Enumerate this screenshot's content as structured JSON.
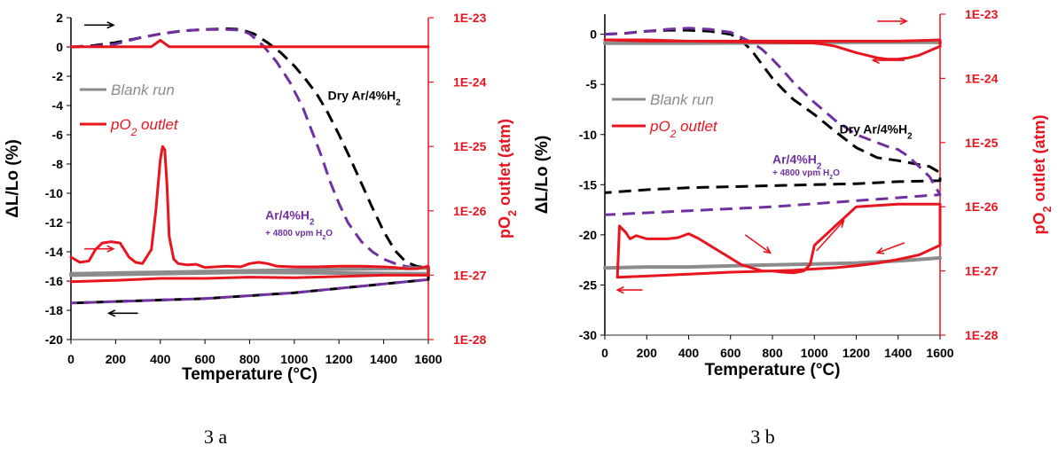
{
  "captions": [
    "3 a",
    "3 b"
  ],
  "colors": {
    "dry": "#000000",
    "wet": "#7030a0",
    "po2": "#e8141e",
    "blank": "#8c8c8c",
    "axis_left": "#000000",
    "axis_right": "#e8141e"
  },
  "chart_data": [
    {
      "type": "line",
      "xlabel": "Temperature (°C)",
      "ylabel": "ΔL/Lo (%)",
      "y2label": "pO2 outlet (atm)",
      "xlim": [
        0,
        1600
      ],
      "ylim": [
        -20,
        2
      ],
      "y2scale": "log",
      "y2lim_exp": [
        -28,
        -23
      ],
      "xticks": [
        "0",
        "200",
        "400",
        "600",
        "800",
        "1000",
        "1200",
        "1400",
        "1600"
      ],
      "xtick_values": [
        0,
        200,
        400,
        600,
        800,
        1000,
        1200,
        1400,
        1600
      ],
      "yticks": [
        "2",
        "0",
        "-2",
        "-4",
        "-6",
        "-8",
        "-10",
        "-12",
        "-14",
        "-16",
        "-18",
        "-20"
      ],
      "ytick_values": [
        2,
        0,
        -2,
        -4,
        -6,
        -8,
        -10,
        -12,
        -14,
        -16,
        -18,
        -20
      ],
      "y2ticks": [
        "1E-23",
        "1E-24",
        "1E-25",
        "1E-26",
        "1E-27",
        "1E-28"
      ],
      "y2tick_exp": [
        -23,
        -24,
        -25,
        -26,
        -27,
        -28
      ],
      "legend": [
        {
          "label": "Blank run",
          "series": "blank"
        },
        {
          "label": "pO2 outlet",
          "series": "po2"
        }
      ],
      "annotations": [
        {
          "text": "Dry Ar/4%H2",
          "x": 1150,
          "y": -3.6,
          "color": "dry",
          "size": "large"
        },
        {
          "text": "Ar/4%H2",
          "x": 870,
          "y": -11.8,
          "color": "wet",
          "size": "large"
        },
        {
          "text": "+ 4800 vpm H2O",
          "x": 870,
          "y": -12.9,
          "color": "wet",
          "size": "small"
        }
      ],
      "arrows": [
        {
          "x1": 60,
          "x2": 190,
          "y": 1.5,
          "color": "dry"
        },
        {
          "x1": 60,
          "x2": 190,
          "y": -13.8,
          "color": "po2"
        },
        {
          "x1": 300,
          "x2": 170,
          "y": -18.2,
          "color": "dry"
        }
      ],
      "series": [
        {
          "key": "dry",
          "axis": "left",
          "dash": true,
          "x": [
            0,
            100,
            200,
            300,
            400,
            500,
            600,
            700,
            760,
            820,
            880,
            940,
            1000,
            1050,
            1100,
            1150,
            1200,
            1250,
            1300,
            1350,
            1400,
            1450,
            1500,
            1550,
            1600,
            1600,
            1400,
            1200,
            1000,
            800,
            600,
            400,
            200,
            0
          ],
          "y": [
            0,
            0.1,
            0.3,
            0.6,
            0.9,
            1.1,
            1.2,
            1.25,
            1.2,
            0.9,
            0.3,
            -0.4,
            -1.3,
            -2.2,
            -3.2,
            -4.5,
            -6,
            -7.6,
            -9.3,
            -11,
            -12.6,
            -13.9,
            -14.7,
            -15,
            -15.1,
            -15.9,
            -16.2,
            -16.5,
            -16.8,
            -17,
            -17.2,
            -17.3,
            -17.4,
            -17.5
          ]
        },
        {
          "key": "wet",
          "axis": "left",
          "dash": true,
          "x": [
            0,
            100,
            200,
            300,
            400,
            500,
            600,
            700,
            760,
            800,
            860,
            920,
            980,
            1040,
            1080,
            1120,
            1160,
            1200,
            1240,
            1300,
            1350,
            1400,
            1450,
            1500,
            1550,
            1600,
            1600,
            1400,
            1200,
            1000,
            800,
            600,
            400,
            200,
            0
          ],
          "y": [
            0,
            0.05,
            0.2,
            0.6,
            0.9,
            1.1,
            1.2,
            1.2,
            1.15,
            0.9,
            0.1,
            -1,
            -2.4,
            -4.2,
            -5.8,
            -7.4,
            -9.2,
            -10.7,
            -12,
            -13.3,
            -14,
            -14.5,
            -14.8,
            -15,
            -15.1,
            -15.1,
            -15.9,
            -16.2,
            -16.5,
            -16.8,
            -17,
            -17.2,
            -17.3,
            -17.4,
            -17.5
          ]
        },
        {
          "key": "blank",
          "axis": "left",
          "dash": false,
          "x": [
            0,
            200,
            400,
            600,
            800,
            1000,
            1200,
            1400,
            1600,
            1600,
            800,
            0
          ],
          "y": [
            -15.5,
            -15.45,
            -15.4,
            -15.35,
            -15.3,
            -15.25,
            -15.2,
            -15.15,
            -15.1,
            -15.5,
            -15.4,
            -15.6
          ]
        },
        {
          "key": "po2",
          "axis": "right",
          "dash": false,
          "x": [
            0,
            200,
            360,
            400,
            440,
            600,
            800,
            1000,
            1200,
            1400,
            1600
          ],
          "y": [
            -23.45,
            -23.45,
            -23.45,
            -23.35,
            -23.45,
            -23.45,
            -23.45,
            -23.45,
            -23.45,
            -23.45,
            -23.45
          ]
        },
        {
          "key": "po2",
          "axis": "right",
          "dash": false,
          "x": [
            0,
            40,
            80,
            110,
            140,
            180,
            220,
            260,
            290,
            320,
            360,
            380,
            400,
            410,
            420,
            430,
            440,
            460,
            480,
            520,
            560,
            600,
            700,
            760,
            800,
            840,
            880,
            920,
            1000,
            1100,
            1200,
            1300,
            1400,
            1450,
            1500,
            1550,
            1600,
            1600,
            1400,
            1200,
            1000,
            800,
            600,
            400,
            200,
            0
          ],
          "y": [
            -26.72,
            -26.8,
            -26.78,
            -26.6,
            -26.5,
            -26.48,
            -26.5,
            -26.72,
            -26.8,
            -26.82,
            -26.6,
            -26.0,
            -25.2,
            -25.0,
            -25.05,
            -25.6,
            -26.4,
            -26.75,
            -26.82,
            -26.84,
            -26.83,
            -26.88,
            -26.86,
            -26.87,
            -26.82,
            -26.8,
            -26.82,
            -26.86,
            -26.87,
            -26.87,
            -26.86,
            -26.86,
            -26.87,
            -26.88,
            -26.9,
            -26.9,
            -26.86,
            -27.0,
            -27.0,
            -27.02,
            -27.04,
            -27.03,
            -27.05,
            -27.05,
            -27.08,
            -27.1
          ]
        }
      ]
    },
    {
      "type": "line",
      "xlabel": "Temperature (°C)",
      "ylabel": "ΔL/Lo (%)",
      "y2label": "pO2 outlet (atm)",
      "xlim": [
        0,
        1600
      ],
      "ylim": [
        -30,
        2
      ],
      "y2scale": "log",
      "y2lim_exp": [
        -28,
        -23
      ],
      "xticks": [
        "0",
        "200",
        "400",
        "600",
        "800",
        "1000",
        "1200",
        "1400",
        "1600"
      ],
      "xtick_values": [
        0,
        200,
        400,
        600,
        800,
        1000,
        1200,
        1400,
        1600
      ],
      "yticks": [
        "0",
        "-5",
        "-10",
        "-15",
        "-20",
        "-25",
        "-30"
      ],
      "ytick_values": [
        0,
        -5,
        -10,
        -15,
        -20,
        -25,
        -30
      ],
      "y2ticks": [
        "1E-23",
        "1E-24",
        "1E-25",
        "1E-26",
        "1E-27",
        "1E-28"
      ],
      "y2tick_exp": [
        -23,
        -24,
        -25,
        -26,
        -27,
        -28
      ],
      "legend": [
        {
          "label": "Blank run",
          "series": "blank"
        },
        {
          "label": "pO2 outlet",
          "series": "po2"
        }
      ],
      "annotations": [
        {
          "text": "Dry Ar/4%H2",
          "x": 1120,
          "y": -9.9,
          "color": "dry",
          "size": "large"
        },
        {
          "text": "Ar/4%H2",
          "x": 800,
          "y": -12.9,
          "color": "wet",
          "size": "large"
        },
        {
          "text": "+ 4800 vpm H2O",
          "x": 800,
          "y": -14.1,
          "color": "wet",
          "size": "small"
        }
      ],
      "arrows": [
        {
          "x1": 1300,
          "x2": 1440,
          "y": 1.3,
          "color": "po2"
        },
        {
          "x1": 1430,
          "x2": 1280,
          "y": -2.6,
          "color": "po2"
        },
        {
          "x1": 670,
          "x2": 790,
          "y": -20.0,
          "color": "po2",
          "y2": -21.8
        },
        {
          "x1": 1010,
          "x2": 1140,
          "y": -21.6,
          "color": "po2",
          "y2": -18.6
        },
        {
          "x1": 1430,
          "x2": 1300,
          "y": -20.8,
          "color": "po2",
          "y2": -21.8
        },
        {
          "x1": 180,
          "x2": 60,
          "y": -25.5,
          "color": "po2"
        }
      ],
      "series": [
        {
          "key": "dry",
          "axis": "left",
          "dash": true,
          "x": [
            0,
            100,
            200,
            300,
            400,
            500,
            600,
            650,
            700,
            750,
            800,
            850,
            900,
            1000,
            1100,
            1200,
            1300,
            1400,
            1450,
            1500,
            1550,
            1600,
            1600,
            1400,
            1200,
            1000,
            800,
            600,
            400,
            200,
            0
          ],
          "y": [
            0,
            0.1,
            0.3,
            0.4,
            0.4,
            0.3,
            0,
            -0.6,
            -1.6,
            -3,
            -4.4,
            -5.5,
            -6.5,
            -8,
            -9.7,
            -11.3,
            -12.3,
            -12.6,
            -12.8,
            -13,
            -13.2,
            -13.8,
            -14.6,
            -14.7,
            -14.9,
            -15,
            -15.1,
            -15.2,
            -15.3,
            -15.5,
            -15.8
          ]
        },
        {
          "key": "wet",
          "axis": "left",
          "dash": true,
          "x": [
            0,
            100,
            200,
            300,
            400,
            500,
            600,
            650,
            700,
            750,
            800,
            850,
            900,
            1000,
            1100,
            1200,
            1300,
            1350,
            1400,
            1450,
            1500,
            1550,
            1600,
            1600,
            1400,
            1200,
            1000,
            800,
            600,
            400,
            200,
            0
          ],
          "y": [
            0,
            0.1,
            0.3,
            0.5,
            0.6,
            0.5,
            0.2,
            -0.3,
            -0.8,
            -1.5,
            -2.5,
            -3.6,
            -4.8,
            -6.8,
            -8.6,
            -10,
            -10.8,
            -11.2,
            -11.5,
            -12.2,
            -13.2,
            -14.2,
            -16,
            -16,
            -16.3,
            -16.6,
            -16.9,
            -17.2,
            -17.4,
            -17.6,
            -17.8,
            -18
          ]
        },
        {
          "key": "blank",
          "axis": "left",
          "dash": false,
          "x": [
            0,
            200,
            400,
            600,
            800,
            1000,
            1200,
            1400,
            1600
          ],
          "y": [
            -23.3,
            -23.2,
            -23.2,
            -23.1,
            -23.0,
            -22.9,
            -22.8,
            -22.6,
            -22.3
          ]
        },
        {
          "key": "blank",
          "axis": "left",
          "dash": false,
          "x": [
            0,
            400,
            800,
            1200,
            1600
          ],
          "y": [
            -0.9,
            -0.9,
            -0.85,
            -0.8,
            -0.8
          ]
        },
        {
          "key": "po2",
          "axis": "right",
          "dash": false,
          "x": [
            0,
            200,
            400,
            600,
            800,
            1000,
            1050,
            1100,
            1200,
            1300,
            1350,
            1400,
            1450,
            1500,
            1550,
            1600,
            1600,
            1500,
            1400,
            1200,
            1000,
            800,
            600,
            400,
            200,
            0
          ],
          "y": [
            -23.4,
            -23.4,
            -23.42,
            -23.43,
            -23.44,
            -23.45,
            -23.47,
            -23.5,
            -23.6,
            -23.68,
            -23.7,
            -23.7,
            -23.68,
            -23.64,
            -23.57,
            -23.5,
            -23.4,
            -23.41,
            -23.42,
            -23.42,
            -23.42,
            -23.42,
            -23.42,
            -23.42,
            -23.42,
            -23.4
          ]
        },
        {
          "key": "po2",
          "axis": "right",
          "dash": false,
          "x": [
            60,
            70,
            100,
            120,
            150,
            200,
            250,
            300,
            350,
            400,
            450,
            500,
            550,
            600,
            650,
            700,
            750,
            800,
            850,
            900,
            950,
            980,
            1000,
            1050,
            1100,
            1150,
            1200,
            1300,
            1400,
            1500,
            1550,
            1600,
            1600,
            1500,
            1400,
            1300,
            1200,
            1100,
            1000,
            900,
            800,
            600,
            400,
            200,
            60
          ],
          "y": [
            -27.1,
            -26.3,
            -26.4,
            -26.5,
            -26.45,
            -26.5,
            -26.5,
            -26.5,
            -26.48,
            -26.42,
            -26.5,
            -26.6,
            -26.7,
            -26.8,
            -26.9,
            -26.95,
            -27.0,
            -27.0,
            -27.02,
            -27.03,
            -27.0,
            -26.9,
            -26.6,
            -26.45,
            -26.3,
            -26.15,
            -26.0,
            -25.98,
            -25.96,
            -25.96,
            -25.96,
            -25.96,
            -26.6,
            -26.75,
            -26.82,
            -26.88,
            -26.92,
            -26.95,
            -26.97,
            -26.99,
            -27.0,
            -27.02,
            -27.05,
            -27.08,
            -27.1
          ]
        }
      ]
    }
  ]
}
